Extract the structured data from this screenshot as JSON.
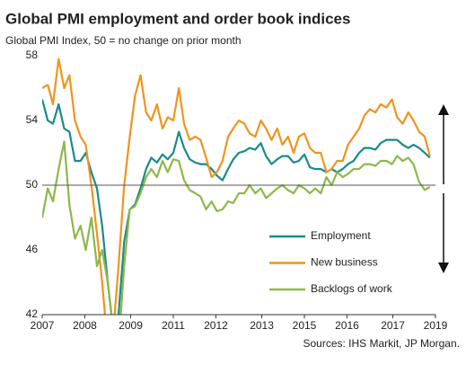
{
  "chart_data": {
    "type": "line",
    "title": "Global PMI employment and order book indices",
    "subtitle": "Global  PMI Index, 50 = no change on prior month",
    "source": "Sources: IHS Markit, JP Morgan.",
    "x": [
      2007,
      2007.17,
      2007.33,
      2007.5,
      2007.67,
      2007.83,
      2008,
      2008.17,
      2008.33,
      2008.5,
      2008.67,
      2008.83,
      2009,
      2009.17,
      2009.33,
      2009.5,
      2009.67,
      2009.83,
      2010,
      2010.17,
      2010.33,
      2010.5,
      2010.67,
      2010.83,
      2011,
      2011.17,
      2011.33,
      2011.5,
      2011.67,
      2011.83,
      2012,
      2012.17,
      2012.33,
      2012.5,
      2012.67,
      2012.83,
      2013,
      2013.17,
      2013.33,
      2013.5,
      2013.67,
      2013.83,
      2014,
      2014.17,
      2014.33,
      2014.5,
      2014.67,
      2014.83,
      2015,
      2015.17,
      2015.33,
      2015.5,
      2015.67,
      2015.83,
      2016,
      2016.17,
      2016.33,
      2016.5,
      2016.67,
      2016.83,
      2017,
      2017.17,
      2017.33,
      2017.5,
      2017.67,
      2017.83,
      2018,
      2018.17,
      2018.33,
      2018.5,
      2018.67,
      2018.83
    ],
    "series": [
      {
        "name": "Employment",
        "color": "#1a8a8a",
        "values": [
          55.3,
          54,
          53.8,
          55,
          53.5,
          53.3,
          51.5,
          51.5,
          52,
          50.8,
          49.8,
          47.5,
          44,
          41,
          42,
          46.5,
          48.5,
          48.8,
          49.8,
          51,
          51.7,
          51.4,
          51.9,
          51.6,
          52,
          53.3,
          52.3,
          51.6,
          51.4,
          51.3,
          51.3,
          51,
          50.6,
          50.3,
          51,
          51.6,
          52,
          52.1,
          52.3,
          52.2,
          52.6,
          51.8,
          51.3,
          51.6,
          51.8,
          51.8,
          51.4,
          51.5,
          51.9,
          51.1,
          51,
          51,
          50.8,
          51,
          50.8,
          51,
          51.3,
          51.5,
          52,
          52.3,
          52.3,
          52.2,
          52.6,
          52.8,
          52.8,
          52.8,
          52.5,
          52.3,
          52.5,
          52.3,
          52,
          51.7
        ]
      },
      {
        "name": "New business",
        "color": "#f0941e",
        "values": [
          56,
          56.2,
          55,
          57.8,
          56,
          56.8,
          54,
          53,
          52.5,
          50,
          47,
          44,
          40,
          41,
          45,
          50,
          53,
          55.5,
          56.8,
          54.5,
          54,
          55,
          53.5,
          54.2,
          54,
          56,
          53.8,
          52.8,
          53,
          52.8,
          51.7,
          50.5,
          50.8,
          51.5,
          53,
          53.5,
          54,
          53.8,
          53.2,
          53,
          54,
          53.5,
          52.8,
          53.5,
          52.5,
          53,
          52,
          53,
          53.2,
          52.3,
          52,
          52,
          50.8,
          51,
          51.5,
          51.5,
          52.5,
          53,
          53.5,
          54.3,
          54.7,
          54.5,
          55,
          54.8,
          55.3,
          54.2,
          53.8,
          54.5,
          54,
          53.3,
          53,
          51.8
        ]
      },
      {
        "name": "Backlogs of work",
        "color": "#8db84a",
        "values": [
          48,
          49.8,
          49,
          51,
          52.7,
          48.8,
          46.7,
          47.5,
          46,
          48,
          45,
          46,
          44,
          41,
          40,
          45,
          48.5,
          48.7,
          49.5,
          50.5,
          51,
          50.5,
          51.5,
          50.8,
          51.6,
          51.5,
          50.3,
          49.7,
          49.5,
          49.3,
          48.5,
          49,
          48.4,
          48.5,
          49,
          48.9,
          49.5,
          49.5,
          50,
          49.5,
          49.8,
          49.2,
          49.5,
          49.8,
          50,
          49.7,
          49.5,
          50,
          49.8,
          49.5,
          49.8,
          49.5,
          50.5,
          50,
          50.8,
          50.5,
          50.7,
          51,
          51,
          51.3,
          51.3,
          51.2,
          51.5,
          51.5,
          51.3,
          51.8,
          51.5,
          51.7,
          51.3,
          50.2,
          49.7,
          49.9
        ]
      }
    ],
    "xlim": [
      2007,
      2019
    ],
    "xticks": [
      {
        "value": 2007,
        "label": "2007"
      },
      {
        "value": 2008.3,
        "label": "2008"
      },
      {
        "value": 2009.7,
        "label": "2009"
      },
      {
        "value": 2011,
        "label": "2011"
      },
      {
        "value": 2012.3,
        "label": "2012"
      },
      {
        "value": 2013.7,
        "label": "2013"
      },
      {
        "value": 2015,
        "label": "2015"
      },
      {
        "value": 2016.3,
        "label": "2016"
      },
      {
        "value": 2017.7,
        "label": "2017"
      },
      {
        "value": 2019,
        "label": "2019"
      }
    ],
    "ylim": [
      42,
      58
    ],
    "yticks": [
      42,
      46,
      50,
      54,
      58
    ],
    "hline": 50
  }
}
